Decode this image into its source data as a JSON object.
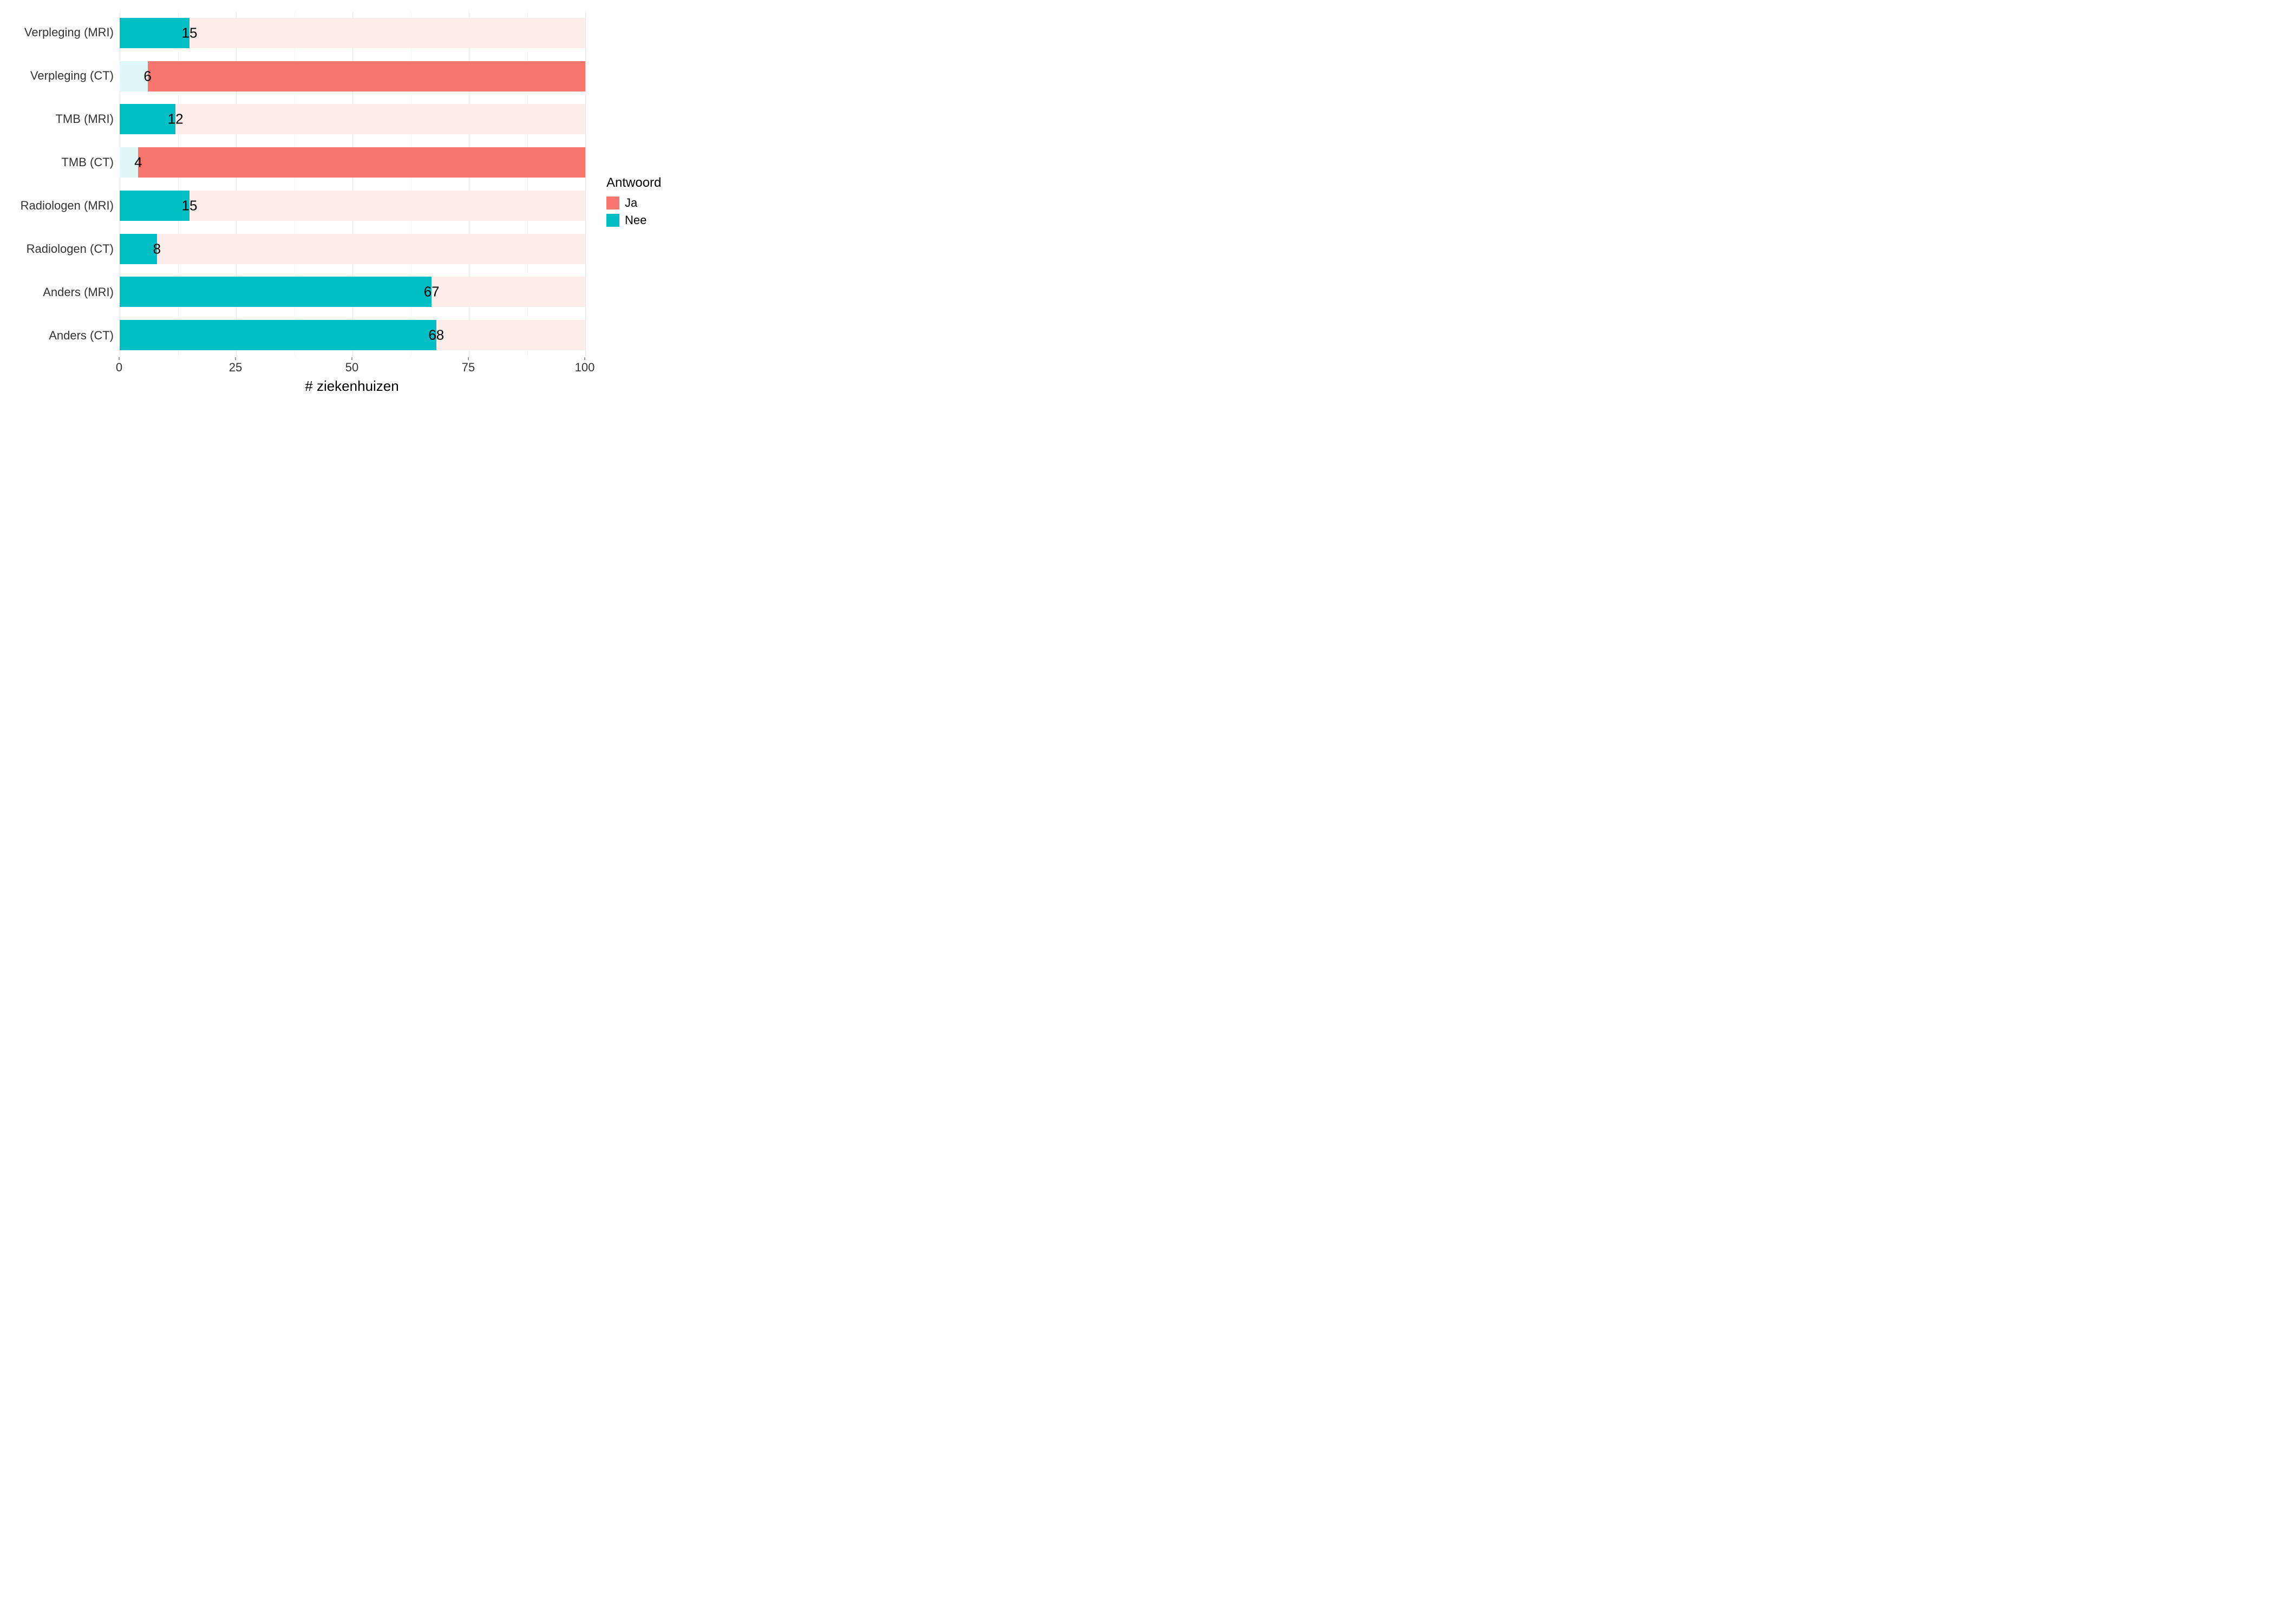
{
  "chart": {
    "type": "bar-horizontal-stacked",
    "xlim": [
      0,
      100
    ],
    "xticks": [
      0,
      25,
      50,
      75,
      100
    ],
    "xlabel": "# ziekenhuizen",
    "background_color": "#ffffff",
    "grid_color_major": "#ebebeb",
    "grid_color_minor": "#f5f5f5",
    "label_fontsize": 22,
    "title_fontsize": 26,
    "bar_label_fontsize": 26,
    "legend": {
      "title": "Antwoord",
      "items": [
        {
          "label": "Ja",
          "color": "#f8766d"
        },
        {
          "label": "Nee",
          "color": "#00bfc4"
        }
      ]
    },
    "colors": {
      "ja": "#f8766d",
      "nee": "#00bfc4",
      "ja_light": "#feecea",
      "nee_light": "#e0f7f8"
    },
    "rows": [
      {
        "category": "Verpleging (MRI)",
        "fg_value": 15,
        "fg_color": "#00bfc4",
        "bg_color": "#feecea",
        "label": "15"
      },
      {
        "category": "Verpleging (CT)",
        "fg_value": 6,
        "fg_color": "#e0f7f8",
        "bg_to": 100,
        "bg_color_override": "#f8766d",
        "bg_from": 6,
        "label": "6"
      },
      {
        "category": "TMB (MRI)",
        "fg_value": 12,
        "fg_color": "#00bfc4",
        "bg_color": "#feecea",
        "label": "12"
      },
      {
        "category": "TMB (CT)",
        "fg_value": 4,
        "fg_color": "#e0f7f8",
        "bg_to": 100,
        "bg_color_override": "#f8766d",
        "bg_from": 4,
        "label": "4"
      },
      {
        "category": "Radiologen (MRI)",
        "fg_value": 15,
        "fg_color": "#00bfc4",
        "bg_color": "#feecea",
        "label": "15"
      },
      {
        "category": "Radiologen (CT)",
        "fg_value": 8,
        "fg_color": "#00bfc4",
        "bg_color": "#feecea",
        "label": "8"
      },
      {
        "category": "Anders (MRI)",
        "fg_value": 67,
        "fg_color": "#00bfc4",
        "bg_color": "#feecea",
        "label": "67"
      },
      {
        "category": "Anders (CT)",
        "fg_value": 68,
        "fg_color": "#00bfc4",
        "bg_color": "#feecea",
        "label": "68"
      }
    ]
  }
}
